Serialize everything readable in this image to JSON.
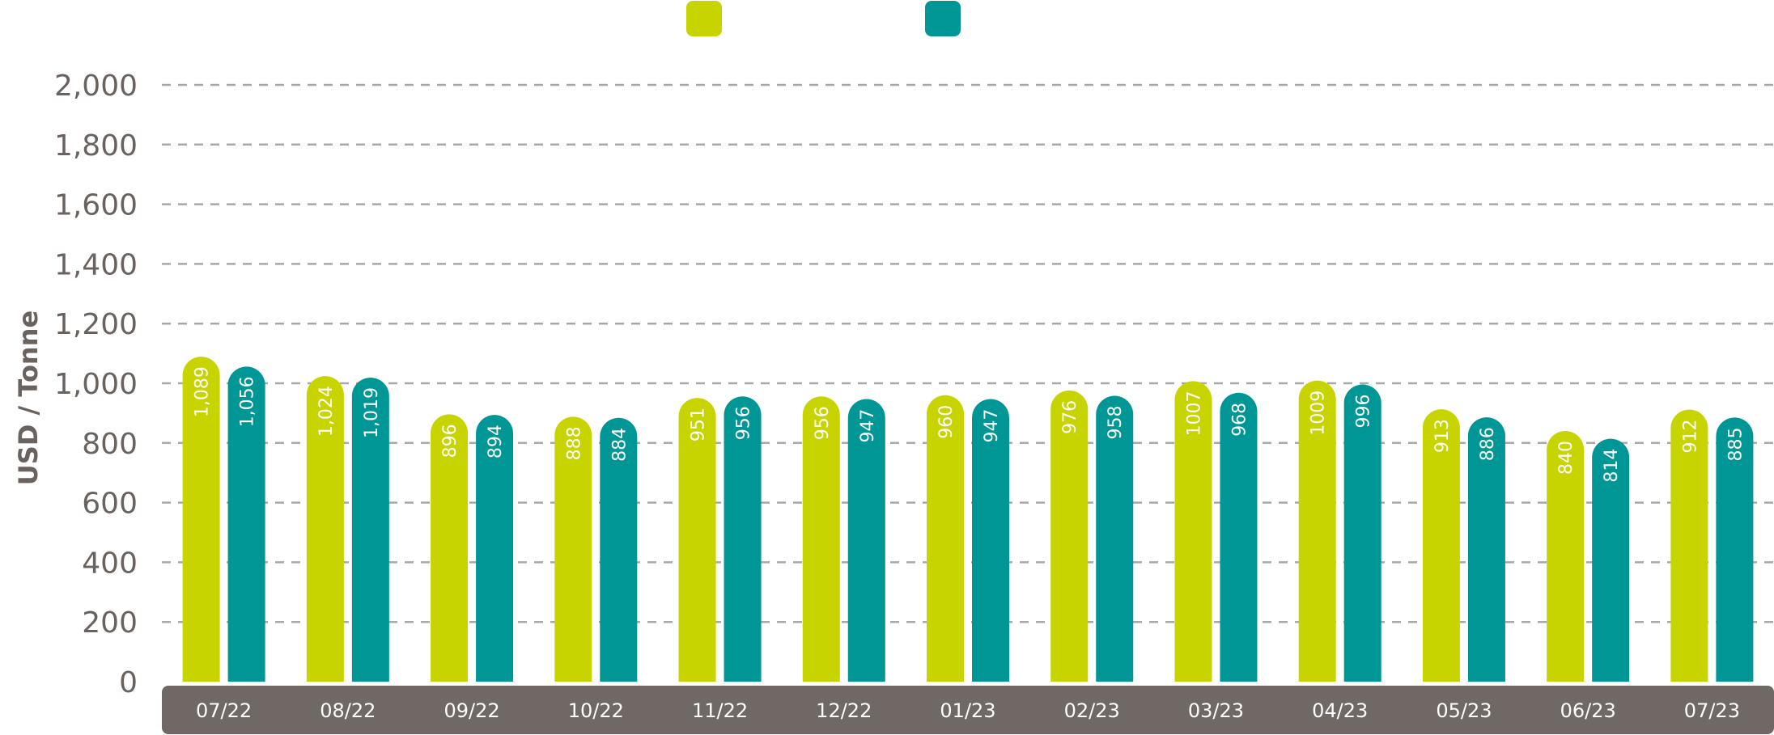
{
  "chart_data": {
    "type": "bar",
    "title": "",
    "xlabel": "",
    "ylabel": "USD / Tonne",
    "ylim": [
      0,
      2000
    ],
    "yticks": [
      "0",
      "200",
      "400",
      "600",
      "800",
      "1,000",
      "1,200",
      "1,400",
      "1,600",
      "1,800",
      "2,000"
    ],
    "categories": [
      "07/22",
      "08/22",
      "09/22",
      "10/22",
      "11/22",
      "12/22",
      "01/23",
      "02/23",
      "03/23",
      "04/23",
      "05/23",
      "06/23",
      "07/23"
    ],
    "grid": true,
    "legend_position": "top-center",
    "series": [
      {
        "color": "#c8d400",
        "values": [
          1089,
          1024,
          896,
          888,
          951,
          956,
          960,
          976,
          1007,
          1009,
          913,
          840,
          912
        ],
        "labels": [
          "1,089",
          "1,024",
          "896",
          "888",
          "951",
          "956",
          "960",
          "976",
          "1007",
          "1009",
          "913",
          "840",
          "912"
        ]
      },
      {
        "color": "#009696",
        "values": [
          1056,
          1019,
          894,
          884,
          956,
          947,
          947,
          958,
          968,
          996,
          886,
          814,
          885
        ],
        "labels": [
          "1,056",
          "1,019",
          "894",
          "884",
          "956",
          "947",
          "947",
          "958",
          "968",
          "996",
          "886",
          "814",
          "885"
        ]
      }
    ],
    "axis_band_color": "#6f6864"
  }
}
